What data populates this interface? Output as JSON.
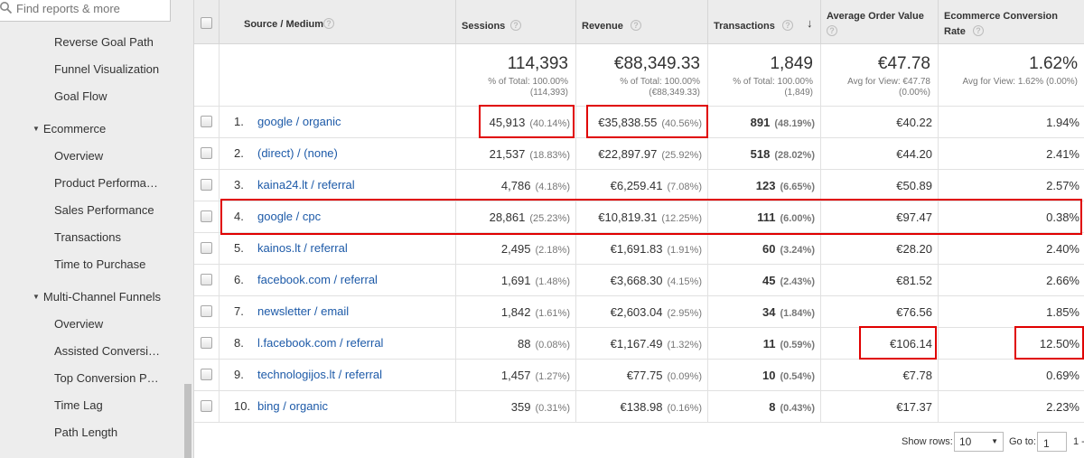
{
  "sidebar": {
    "search_placeholder": "Find reports & more",
    "items_top": [
      "Reverse Goal Path",
      "Funnel Visualization",
      "Goal Flow"
    ],
    "group_ecommerce": "Ecommerce",
    "items_ecommerce": [
      "Overview",
      "Product Performa…",
      "Sales Performance",
      "Transactions",
      "Time to Purchase"
    ],
    "group_mcf": "Multi-Channel Funnels",
    "items_mcf": [
      "Overview",
      "Assisted Conversi…",
      "Top Conversion P…",
      "Time Lag",
      "Path Length"
    ]
  },
  "table": {
    "headers": {
      "source_medium": "Source / Medium",
      "sessions": "Sessions",
      "revenue": "Revenue",
      "transactions": "Transactions",
      "aov": "Average Order Value",
      "ecr_line1": "Ecommerce Conversion",
      "ecr_line2": "Rate"
    },
    "totals": {
      "sessions": "114,393",
      "sessions_sub1": "% of Total: 100.00%",
      "sessions_sub2": "(114,393)",
      "revenue": "€88,349.33",
      "revenue_sub1": "% of Total: 100.00%",
      "revenue_sub2": "(€88,349.33)",
      "transactions": "1,849",
      "transactions_sub1": "% of Total: 100.00%",
      "transactions_sub2": "(1,849)",
      "aov": "€47.78",
      "aov_sub1": "Avg for View: €47.78",
      "aov_sub2": "(0.00%)",
      "ecr": "1.62%",
      "ecr_sub1": "Avg for View: 1.62% (0.00%)"
    },
    "rows": [
      {
        "idx": "1.",
        "source": "google / organic",
        "sessions": "45,913",
        "sessions_pct": "(40.14%)",
        "revenue": "€35,838.55",
        "revenue_pct": "(40.56%)",
        "transactions": "891",
        "transactions_pct": "(48.19%)",
        "aov": "€40.22",
        "ecr": "1.94%"
      },
      {
        "idx": "2.",
        "source": "(direct) / (none)",
        "sessions": "21,537",
        "sessions_pct": "(18.83%)",
        "revenue": "€22,897.97",
        "revenue_pct": "(25.92%)",
        "transactions": "518",
        "transactions_pct": "(28.02%)",
        "aov": "€44.20",
        "ecr": "2.41%"
      },
      {
        "idx": "3.",
        "source": "kaina24.lt / referral",
        "sessions": "4,786",
        "sessions_pct": "(4.18%)",
        "revenue": "€6,259.41",
        "revenue_pct": "(7.08%)",
        "transactions": "123",
        "transactions_pct": "(6.65%)",
        "aov": "€50.89",
        "ecr": "2.57%"
      },
      {
        "idx": "4.",
        "source": "google / cpc",
        "sessions": "28,861",
        "sessions_pct": "(25.23%)",
        "revenue": "€10,819.31",
        "revenue_pct": "(12.25%)",
        "transactions": "111",
        "transactions_pct": "(6.00%)",
        "aov": "€97.47",
        "ecr": "0.38%"
      },
      {
        "idx": "5.",
        "source": "kainos.lt / referral",
        "sessions": "2,495",
        "sessions_pct": "(2.18%)",
        "revenue": "€1,691.83",
        "revenue_pct": "(1.91%)",
        "transactions": "60",
        "transactions_pct": "(3.24%)",
        "aov": "€28.20",
        "ecr": "2.40%"
      },
      {
        "idx": "6.",
        "source": "facebook.com / referral",
        "sessions": "1,691",
        "sessions_pct": "(1.48%)",
        "revenue": "€3,668.30",
        "revenue_pct": "(4.15%)",
        "transactions": "45",
        "transactions_pct": "(2.43%)",
        "aov": "€81.52",
        "ecr": "2.66%"
      },
      {
        "idx": "7.",
        "source": "newsletter / email",
        "sessions": "1,842",
        "sessions_pct": "(1.61%)",
        "revenue": "€2,603.04",
        "revenue_pct": "(2.95%)",
        "transactions": "34",
        "transactions_pct": "(1.84%)",
        "aov": "€76.56",
        "ecr": "1.85%"
      },
      {
        "idx": "8.",
        "source": "l.facebook.com / referral",
        "sessions": "88",
        "sessions_pct": "(0.08%)",
        "revenue": "€1,167.49",
        "revenue_pct": "(1.32%)",
        "transactions": "11",
        "transactions_pct": "(0.59%)",
        "aov": "€106.14",
        "ecr": "12.50%"
      },
      {
        "idx": "9.",
        "source": "technologijos.lt / referral",
        "sessions": "1,457",
        "sessions_pct": "(1.27%)",
        "revenue": "€77.75",
        "revenue_pct": "(0.09%)",
        "transactions": "10",
        "transactions_pct": "(0.54%)",
        "aov": "€7.78",
        "ecr": "0.69%"
      },
      {
        "idx": "10.",
        "source": "bing / organic",
        "sessions": "359",
        "sessions_pct": "(0.31%)",
        "revenue": "€138.98",
        "revenue_pct": "(0.16%)",
        "transactions": "8",
        "transactions_pct": "(0.43%)",
        "aov": "€17.37",
        "ecr": "2.23%"
      }
    ]
  },
  "footer": {
    "show_rows_label": "Show rows:",
    "show_rows_value": "10",
    "goto_label": "Go to:",
    "goto_value": "1",
    "range_text": "1 -"
  },
  "colors": {
    "highlight": "#e00000",
    "link": "#1d5aa8",
    "header_bg": "#ececec"
  }
}
